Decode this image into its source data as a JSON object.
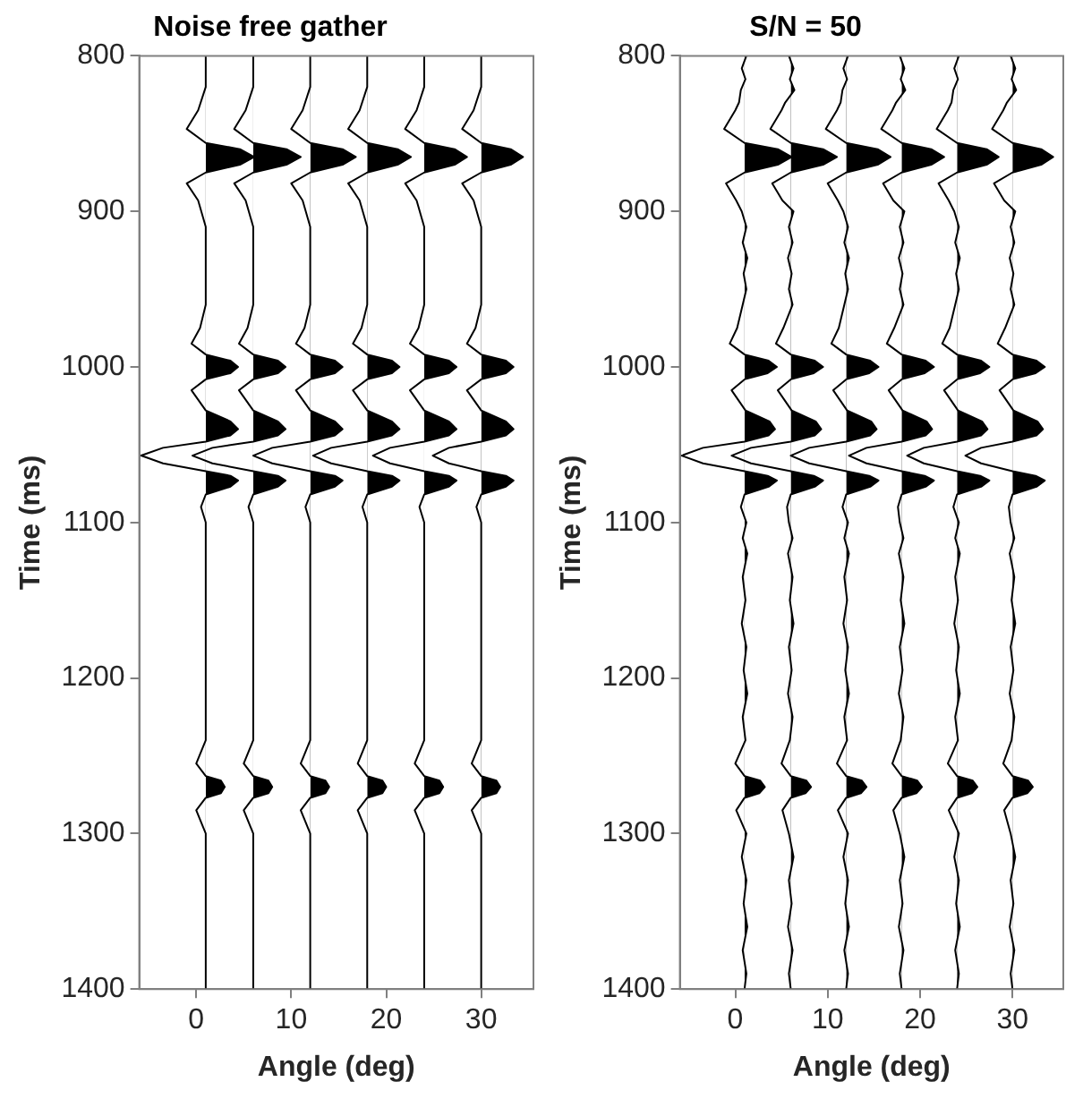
{
  "chart_data": [
    {
      "type": "line",
      "title": "Noise free gather",
      "xlabel": "Angle (deg)",
      "ylabel": "Time (ms)",
      "xlim": [
        -6,
        35.5
      ],
      "xticks": [
        0,
        10,
        20,
        30
      ],
      "ylim": [
        1400,
        800
      ],
      "yticks": [
        800,
        900,
        1000,
        1100,
        1200,
        1300,
        1400
      ],
      "grid": false,
      "legend": false,
      "series": [
        {
          "type": "area",
          "color": "#000000",
          "x": [
            1,
            1,
            0.2,
            -1,
            1,
            4.6,
            6.1,
            4.6,
            1,
            -1,
            0.2,
            1,
            1,
            0.4,
            -0.5,
            1,
            3.6,
            4.4,
            3.6,
            1,
            -0.5,
            1,
            3.6,
            4.4,
            3.6,
            1,
            -3.5,
            -5.8,
            -3.5,
            1,
            3.6,
            4.4,
            3.6,
            1,
            0.5,
            1,
            1,
            0,
            1,
            2.6,
            3,
            2.6,
            1,
            0,
            1,
            1
          ],
          "values": [
            800,
            820,
            835,
            847,
            856,
            860,
            865,
            870,
            875,
            882,
            893,
            910,
            960,
            975,
            985,
            992,
            996,
            1000,
            1004,
            1008,
            1015,
            1028,
            1035,
            1040,
            1044,
            1048,
            1052,
            1057,
            1062,
            1067,
            1070,
            1073,
            1077,
            1082,
            1090,
            1100,
            1240,
            1255,
            1263,
            1266,
            1270,
            1274,
            1277,
            1285,
            1300,
            1400
          ]
        },
        {
          "type": "area",
          "color": "#000000",
          "x": [
            6,
            6,
            5.2,
            4,
            6,
            9.5,
            11,
            9.5,
            6,
            4,
            5.2,
            6,
            6,
            5.4,
            4.5,
            6,
            8.6,
            9.4,
            8.6,
            6,
            4.5,
            6,
            8.6,
            9.4,
            8.6,
            6,
            1.7,
            -0.4,
            1.7,
            6,
            8.6,
            9.4,
            8.6,
            6,
            5.5,
            6,
            6,
            5,
            6,
            7.6,
            8,
            7.6,
            6,
            5,
            6,
            6
          ],
          "values": [
            800,
            820,
            835,
            847,
            856,
            860,
            865,
            870,
            875,
            882,
            893,
            910,
            960,
            975,
            985,
            992,
            996,
            1000,
            1004,
            1008,
            1015,
            1028,
            1035,
            1040,
            1044,
            1048,
            1052,
            1057,
            1062,
            1067,
            1070,
            1073,
            1077,
            1082,
            1090,
            1100,
            1240,
            1255,
            1263,
            1266,
            1270,
            1274,
            1277,
            1285,
            1300,
            1400
          ]
        },
        {
          "type": "area",
          "color": "#000000",
          "x": [
            12,
            12,
            11.2,
            10,
            12,
            15.4,
            16.8,
            15.4,
            12,
            10,
            11.2,
            12,
            12,
            11.4,
            10.5,
            12,
            14.6,
            15.4,
            14.6,
            12,
            10.5,
            12,
            14.6,
            15.4,
            14.6,
            12,
            8,
            6,
            8,
            12,
            14.6,
            15.4,
            14.6,
            12,
            11.5,
            12,
            12,
            11,
            12,
            13.6,
            14,
            13.6,
            12,
            11,
            12,
            12
          ],
          "values": [
            800,
            820,
            835,
            847,
            856,
            860,
            865,
            870,
            875,
            882,
            893,
            910,
            960,
            975,
            985,
            992,
            996,
            1000,
            1004,
            1008,
            1015,
            1028,
            1035,
            1040,
            1044,
            1048,
            1052,
            1057,
            1062,
            1067,
            1070,
            1073,
            1077,
            1082,
            1090,
            1100,
            1240,
            1255,
            1263,
            1266,
            1270,
            1274,
            1277,
            1285,
            1300,
            1400
          ]
        },
        {
          "type": "area",
          "color": "#000000",
          "x": [
            18,
            18,
            17.2,
            16,
            18,
            21.2,
            22.6,
            21.2,
            18,
            16,
            17.2,
            18,
            18,
            17.4,
            16.5,
            18,
            20.6,
            21.4,
            20.6,
            18,
            16.5,
            18,
            20.6,
            21.4,
            20.6,
            18,
            14.2,
            12.3,
            14.2,
            18,
            20.6,
            21.4,
            20.6,
            18,
            17.5,
            18,
            18,
            17,
            18,
            19.6,
            20,
            19.6,
            18,
            17,
            18,
            18
          ],
          "values": [
            800,
            820,
            835,
            847,
            856,
            860,
            865,
            870,
            875,
            882,
            893,
            910,
            960,
            975,
            985,
            992,
            996,
            1000,
            1004,
            1008,
            1015,
            1028,
            1035,
            1040,
            1044,
            1048,
            1052,
            1057,
            1062,
            1067,
            1070,
            1073,
            1077,
            1082,
            1090,
            1100,
            1240,
            1255,
            1263,
            1266,
            1270,
            1274,
            1277,
            1285,
            1300,
            1400
          ]
        },
        {
          "type": "area",
          "color": "#000000",
          "x": [
            24,
            24,
            23.2,
            22,
            24,
            27.2,
            28.5,
            27.2,
            24,
            22,
            23.2,
            24,
            24,
            23.4,
            22.5,
            24,
            26.6,
            27.4,
            26.6,
            24,
            22.5,
            24,
            26.6,
            27.4,
            26.6,
            24,
            20.4,
            18.6,
            20.4,
            24,
            26.6,
            27.4,
            26.6,
            24,
            23.5,
            24,
            24,
            23,
            24,
            25.6,
            26,
            25.6,
            24,
            23,
            24,
            24
          ],
          "values": [
            800,
            820,
            835,
            847,
            856,
            860,
            865,
            870,
            875,
            882,
            893,
            910,
            960,
            975,
            985,
            992,
            996,
            1000,
            1004,
            1008,
            1015,
            1028,
            1035,
            1040,
            1044,
            1048,
            1052,
            1057,
            1062,
            1067,
            1070,
            1073,
            1077,
            1082,
            1090,
            1100,
            1240,
            1255,
            1263,
            1266,
            1270,
            1274,
            1277,
            1285,
            1300,
            1400
          ]
        },
        {
          "type": "area",
          "color": "#000000",
          "x": [
            30,
            30,
            29.2,
            28,
            30,
            33.1,
            34.4,
            33.1,
            30,
            28,
            29.2,
            30,
            30,
            29.4,
            28.5,
            30,
            32.6,
            33.4,
            32.6,
            30,
            28.5,
            30,
            32.6,
            33.4,
            32.6,
            30,
            26.6,
            24.9,
            26.6,
            30,
            32.6,
            33.4,
            32.6,
            30,
            29.5,
            30,
            30,
            29,
            30,
            31.6,
            32,
            31.6,
            30,
            29,
            30,
            30
          ],
          "values": [
            800,
            820,
            835,
            847,
            856,
            860,
            865,
            870,
            875,
            882,
            893,
            910,
            960,
            975,
            985,
            992,
            996,
            1000,
            1004,
            1008,
            1015,
            1028,
            1035,
            1040,
            1044,
            1048,
            1052,
            1057,
            1062,
            1067,
            1070,
            1073,
            1077,
            1082,
            1090,
            1100,
            1240,
            1255,
            1263,
            1266,
            1270,
            1274,
            1277,
            1285,
            1300,
            1400
          ]
        }
      ]
    },
    {
      "type": "line",
      "title": "S/N = 50",
      "xlabel": "Angle (deg)",
      "ylabel": "Time (ms)",
      "xlim": [
        -6,
        35.5
      ],
      "xticks": [
        0,
        10,
        20,
        30
      ],
      "ylim": [
        1400,
        800
      ],
      "yticks": [
        800,
        900,
        1000,
        1100,
        1200,
        1300,
        1400
      ],
      "grid": false,
      "legend": false,
      "series": [
        {
          "type": "area",
          "color": "#000000",
          "x": [
            1.2,
            0.7,
            1.1,
            0.6,
            0.4,
            0,
            -1.2,
            1,
            4.6,
            6.1,
            4.6,
            1,
            -1,
            0.1,
            0.7,
            1.2,
            0.8,
            1.3,
            0.9,
            1.2,
            0.8,
            0.2,
            -0.6,
            1,
            3.6,
            4.5,
            3.5,
            1,
            -0.4,
            1.1,
            3.7,
            4.3,
            3.6,
            1,
            -3.5,
            -5.8,
            -3.5,
            1,
            3.5,
            4.5,
            3.6,
            1,
            0.6,
            1.2,
            0.8,
            1.3,
            0.8,
            1.1,
            0.7,
            1.2,
            0.9,
            1.3,
            0.8,
            1.1,
            0,
            1,
            2.7,
            3.2,
            2.6,
            1,
            0.1,
            1.2,
            0.7,
            1.2,
            0.9,
            1.3,
            0.8,
            1.2,
            1
          ],
          "values": [
            800,
            808,
            815,
            822,
            830,
            835,
            847,
            856,
            860,
            865,
            870,
            875,
            882,
            893,
            900,
            910,
            920,
            930,
            940,
            950,
            960,
            975,
            985,
            992,
            996,
            1000,
            1004,
            1008,
            1015,
            1028,
            1035,
            1040,
            1044,
            1048,
            1052,
            1057,
            1062,
            1067,
            1070,
            1073,
            1077,
            1082,
            1090,
            1100,
            1110,
            1120,
            1135,
            1150,
            1165,
            1180,
            1195,
            1210,
            1225,
            1240,
            1255,
            1263,
            1266,
            1270,
            1274,
            1277,
            1285,
            1300,
            1315,
            1330,
            1345,
            1360,
            1375,
            1390,
            1400
          ]
        },
        {
          "type": "area",
          "color": "#000000",
          "x": [
            5.8,
            6.3,
            5.9,
            6.4,
            5.4,
            5,
            3.8,
            6,
            9.5,
            11,
            9.5,
            6,
            4,
            5.1,
            6.3,
            5.8,
            6.2,
            5.7,
            6.1,
            5.8,
            6.2,
            5.2,
            4.4,
            6,
            8.6,
            9.5,
            8.5,
            6,
            4.6,
            6.1,
            8.7,
            9.3,
            8.6,
            6,
            1.7,
            -0.4,
            1.7,
            6,
            8.5,
            9.5,
            8.6,
            6,
            5.6,
            5.8,
            6.2,
            5.7,
            6.2,
            5.9,
            6.3,
            5.8,
            6.1,
            5.7,
            6.2,
            5.9,
            5,
            6,
            7.7,
            8.2,
            7.6,
            6,
            5.1,
            5.8,
            6.3,
            5.8,
            6.1,
            5.7,
            6.2,
            5.8,
            6
          ],
          "values": [
            800,
            808,
            815,
            822,
            830,
            835,
            847,
            856,
            860,
            865,
            870,
            875,
            882,
            893,
            900,
            910,
            920,
            930,
            940,
            950,
            960,
            975,
            985,
            992,
            996,
            1000,
            1004,
            1008,
            1015,
            1028,
            1035,
            1040,
            1044,
            1048,
            1052,
            1057,
            1062,
            1067,
            1070,
            1073,
            1077,
            1082,
            1090,
            1100,
            1110,
            1120,
            1135,
            1150,
            1165,
            1180,
            1195,
            1210,
            1225,
            1240,
            1255,
            1263,
            1266,
            1270,
            1274,
            1277,
            1285,
            1300,
            1315,
            1330,
            1345,
            1360,
            1375,
            1390,
            1400
          ]
        },
        {
          "type": "area",
          "color": "#000000",
          "x": [
            12.2,
            11.7,
            12.1,
            11.6,
            11.4,
            11,
            9.8,
            12,
            15.4,
            16.8,
            15.4,
            12,
            10,
            11.1,
            11.7,
            12.2,
            11.8,
            12.3,
            11.9,
            12.2,
            11.8,
            11.2,
            10.4,
            12,
            14.6,
            15.5,
            14.5,
            12,
            10.6,
            12.1,
            14.7,
            15.3,
            14.6,
            12,
            8,
            6,
            8,
            12,
            14.5,
            15.5,
            14.6,
            12,
            11.6,
            12.2,
            11.8,
            12.3,
            11.8,
            12.1,
            11.7,
            12.2,
            11.9,
            12.3,
            11.8,
            12.1,
            11,
            12,
            13.7,
            14.2,
            13.6,
            12,
            11.1,
            12.2,
            11.7,
            12.2,
            11.9,
            12.3,
            11.8,
            12.2,
            12
          ],
          "values": [
            800,
            808,
            815,
            822,
            830,
            835,
            847,
            856,
            860,
            865,
            870,
            875,
            882,
            893,
            900,
            910,
            920,
            930,
            940,
            950,
            960,
            975,
            985,
            992,
            996,
            1000,
            1004,
            1008,
            1015,
            1028,
            1035,
            1040,
            1044,
            1048,
            1052,
            1057,
            1062,
            1067,
            1070,
            1073,
            1077,
            1082,
            1090,
            1100,
            1110,
            1120,
            1135,
            1150,
            1165,
            1180,
            1195,
            1210,
            1225,
            1240,
            1255,
            1263,
            1266,
            1270,
            1274,
            1277,
            1285,
            1300,
            1315,
            1330,
            1345,
            1360,
            1375,
            1390,
            1400
          ]
        },
        {
          "type": "area",
          "color": "#000000",
          "x": [
            17.8,
            18.3,
            17.9,
            18.4,
            17.4,
            17,
            15.8,
            18,
            21.2,
            22.6,
            21.2,
            18,
            16,
            17.1,
            18.3,
            17.8,
            18.2,
            17.7,
            18.1,
            17.8,
            18.2,
            17.2,
            16.4,
            18,
            20.6,
            21.5,
            20.5,
            18,
            16.6,
            18.1,
            20.7,
            21.3,
            20.6,
            18,
            14.2,
            12.3,
            14.2,
            18,
            20.5,
            21.5,
            20.6,
            18,
            17.6,
            17.8,
            18.2,
            17.7,
            18.2,
            17.9,
            18.3,
            17.8,
            18.1,
            17.7,
            18.2,
            17.9,
            17,
            18,
            19.7,
            20.2,
            19.6,
            18,
            17.1,
            17.8,
            18.3,
            17.8,
            18.1,
            17.7,
            18.2,
            17.8,
            18
          ],
          "values": [
            800,
            808,
            815,
            822,
            830,
            835,
            847,
            856,
            860,
            865,
            870,
            875,
            882,
            893,
            900,
            910,
            920,
            930,
            940,
            950,
            960,
            975,
            985,
            992,
            996,
            1000,
            1004,
            1008,
            1015,
            1028,
            1035,
            1040,
            1044,
            1048,
            1052,
            1057,
            1062,
            1067,
            1070,
            1073,
            1077,
            1082,
            1090,
            1100,
            1110,
            1120,
            1135,
            1150,
            1165,
            1180,
            1195,
            1210,
            1225,
            1240,
            1255,
            1263,
            1266,
            1270,
            1274,
            1277,
            1285,
            1300,
            1315,
            1330,
            1345,
            1360,
            1375,
            1390,
            1400
          ]
        },
        {
          "type": "area",
          "color": "#000000",
          "x": [
            24.2,
            23.7,
            24.1,
            23.6,
            23.4,
            23,
            21.8,
            24,
            27.2,
            28.5,
            27.2,
            24,
            22,
            23.1,
            23.7,
            24.2,
            23.8,
            24.3,
            23.9,
            24.2,
            23.8,
            23.2,
            22.4,
            24,
            26.6,
            27.5,
            26.5,
            24,
            22.6,
            24.1,
            26.7,
            27.3,
            26.6,
            24,
            20.4,
            18.6,
            20.4,
            24,
            26.5,
            27.5,
            26.6,
            24,
            23.6,
            24.2,
            23.8,
            24.3,
            23.8,
            24.1,
            23.7,
            24.2,
            23.9,
            24.3,
            23.8,
            24.1,
            23,
            24,
            25.7,
            26.2,
            25.6,
            24,
            23.1,
            24.2,
            23.7,
            24.2,
            23.9,
            24.3,
            23.8,
            24.2,
            24
          ],
          "values": [
            800,
            808,
            815,
            822,
            830,
            835,
            847,
            856,
            860,
            865,
            870,
            875,
            882,
            893,
            900,
            910,
            920,
            930,
            940,
            950,
            960,
            975,
            985,
            992,
            996,
            1000,
            1004,
            1008,
            1015,
            1028,
            1035,
            1040,
            1044,
            1048,
            1052,
            1057,
            1062,
            1067,
            1070,
            1073,
            1077,
            1082,
            1090,
            1100,
            1110,
            1120,
            1135,
            1150,
            1165,
            1180,
            1195,
            1210,
            1225,
            1240,
            1255,
            1263,
            1266,
            1270,
            1274,
            1277,
            1285,
            1300,
            1315,
            1330,
            1345,
            1360,
            1375,
            1390,
            1400
          ]
        },
        {
          "type": "area",
          "color": "#000000",
          "x": [
            29.8,
            30.3,
            29.9,
            30.4,
            29.4,
            29,
            27.8,
            30,
            33.1,
            34.4,
            33.1,
            30,
            28,
            29.1,
            30.3,
            29.8,
            30.2,
            29.7,
            30.1,
            29.8,
            30.2,
            29.2,
            28.4,
            30,
            32.6,
            33.5,
            32.5,
            30,
            28.6,
            30.1,
            32.7,
            33.3,
            32.6,
            30,
            26.6,
            24.9,
            26.6,
            30,
            32.5,
            33.5,
            32.6,
            30,
            29.6,
            29.8,
            30.2,
            29.7,
            30.2,
            29.9,
            30.3,
            29.8,
            30.1,
            29.7,
            30.2,
            29.9,
            29,
            30,
            31.7,
            32.2,
            31.6,
            30,
            29.1,
            29.8,
            30.3,
            29.8,
            30.1,
            29.7,
            30.2,
            29.8,
            30
          ],
          "values": [
            800,
            808,
            815,
            822,
            830,
            835,
            847,
            856,
            860,
            865,
            870,
            875,
            882,
            893,
            900,
            910,
            920,
            930,
            940,
            950,
            960,
            975,
            985,
            992,
            996,
            1000,
            1004,
            1008,
            1015,
            1028,
            1035,
            1040,
            1044,
            1048,
            1052,
            1057,
            1062,
            1067,
            1070,
            1073,
            1077,
            1082,
            1090,
            1100,
            1110,
            1120,
            1135,
            1150,
            1165,
            1180,
            1195,
            1210,
            1225,
            1240,
            1255,
            1263,
            1266,
            1270,
            1274,
            1277,
            1285,
            1300,
            1315,
            1330,
            1345,
            1360,
            1375,
            1390,
            1400
          ]
        }
      ]
    }
  ]
}
